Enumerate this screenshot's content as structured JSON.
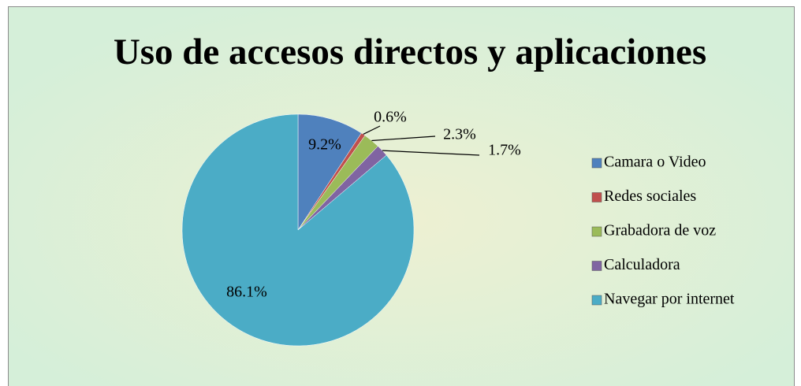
{
  "chart_data": {
    "type": "pie",
    "title": "Uso de accesos directos y aplicaciones",
    "categories": [
      "Camara o Video",
      "Redes sociales",
      "Grabadora de voz",
      "Calculadora",
      "Navegar por internet"
    ],
    "values": [
      9.2,
      0.6,
      2.3,
      1.7,
      86.1
    ],
    "value_labels": [
      "9.2%",
      "0.6%",
      "2.3%",
      "1.7%",
      "86.1%"
    ],
    "colors": [
      "#4f81bd",
      "#c0504d",
      "#9bbb59",
      "#8064a2",
      "#4bacc6"
    ],
    "legend": "right"
  }
}
